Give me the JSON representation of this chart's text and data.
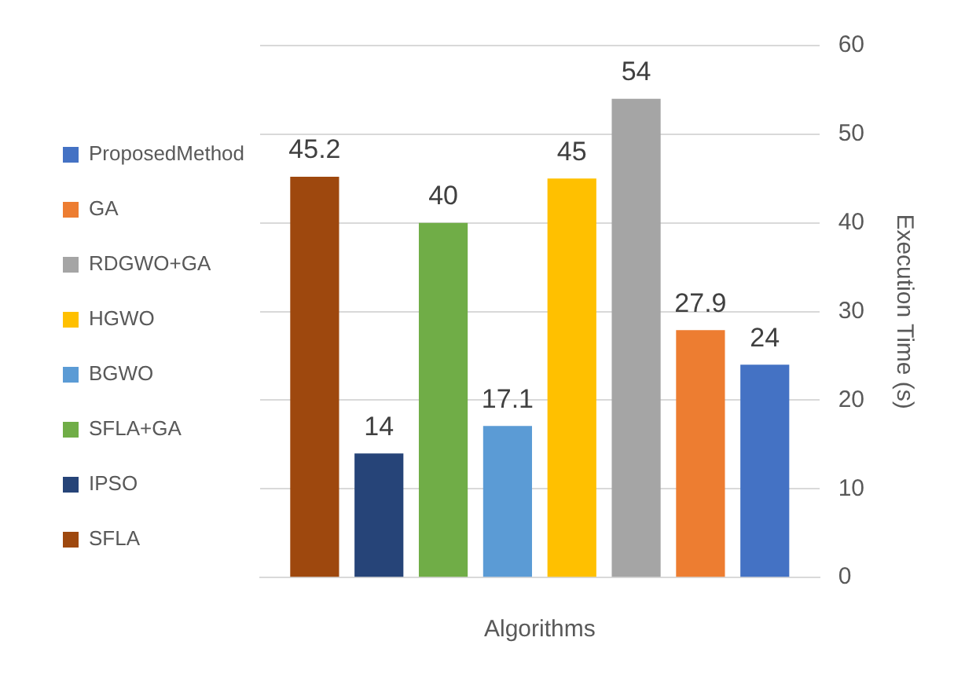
{
  "chart_data": {
    "type": "bar",
    "xlabel": "Algorithms",
    "ylabel": "Execution Time (s)",
    "categories": [
      null
    ],
    "series": [
      {
        "name": "SFLA",
        "color": "#9e480e",
        "values": [
          45.2
        ]
      },
      {
        "name": "IPSO",
        "color": "#264478",
        "values": [
          14
        ]
      },
      {
        "name": "SFLA+GA",
        "color": "#70ad47",
        "values": [
          40
        ]
      },
      {
        "name": "BGWO",
        "color": "#5b9bd5",
        "values": [
          17.1
        ]
      },
      {
        "name": "HGWO",
        "color": "#ffc000",
        "values": [
          45
        ]
      },
      {
        "name": "RDGWO+GA",
        "color": "#a5a5a5",
        "values": [
          54
        ]
      },
      {
        "name": "GA",
        "color": "#ed7d31",
        "values": [
          27.9
        ]
      },
      {
        "name": "ProposedMethod",
        "color": "#4472c4",
        "values": [
          24
        ]
      }
    ],
    "ylim": [
      0,
      60
    ],
    "yticks": [
      0,
      10,
      20,
      30,
      40,
      50,
      60
    ],
    "grid": "y",
    "legend": "left",
    "data_labels": true
  }
}
